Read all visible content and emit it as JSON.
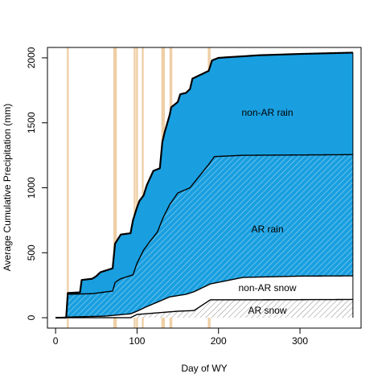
{
  "chart_data": {
    "type": "area",
    "title": "",
    "xlabel": "Day of WY",
    "ylabel": "Average Cumulative Precipitation (mm)",
    "xlim": [
      -10,
      375
    ],
    "ylim": [
      -80,
      2080
    ],
    "x_ticks": [
      0,
      100,
      200,
      300
    ],
    "x_tick_labels": [
      "0",
      "100",
      "200",
      "300"
    ],
    "y_ticks": [
      0,
      500,
      1000,
      1500,
      2000
    ],
    "y_tick_labels": [
      "0",
      "500",
      "1000",
      "1500",
      "2000"
    ],
    "grid": false,
    "legend": "none",
    "x_end": 365,
    "ar_event_days": [
      15,
      72,
      73,
      74,
      97,
      100,
      107,
      131,
      132,
      133,
      141,
      142,
      188,
      189
    ],
    "series": [
      {
        "name": "AR snow",
        "color": "#ffffff",
        "fill": "gray-hatch",
        "points": [
          [
            0,
            0
          ],
          [
            92,
            0
          ],
          [
            95,
            10
          ],
          [
            100,
            25
          ],
          [
            120,
            35
          ],
          [
            150,
            50
          ],
          [
            170,
            55
          ],
          [
            190,
            138
          ],
          [
            250,
            138
          ],
          [
            365,
            140
          ]
        ]
      },
      {
        "name": "non-AR snow",
        "color": "#ffffff",
        "fill": "white",
        "points": [
          [
            0,
            0
          ],
          [
            15,
            5
          ],
          [
            60,
            12
          ],
          [
            92,
            30
          ],
          [
            100,
            50
          ],
          [
            110,
            80
          ],
          [
            125,
            120
          ],
          [
            140,
            160
          ],
          [
            160,
            180
          ],
          [
            170,
            200
          ],
          [
            190,
            260
          ],
          [
            230,
            310
          ],
          [
            300,
            320
          ],
          [
            365,
            322
          ]
        ]
      },
      {
        "name": "AR rain",
        "color": "#199fe0",
        "fill": "blue-hatch",
        "points": [
          [
            0,
            0
          ],
          [
            13,
            0
          ],
          [
            15,
            180
          ],
          [
            45,
            185
          ],
          [
            70,
            205
          ],
          [
            73,
            270
          ],
          [
            76,
            285
          ],
          [
            80,
            300
          ],
          [
            95,
            330
          ],
          [
            100,
            420
          ],
          [
            108,
            520
          ],
          [
            115,
            580
          ],
          [
            125,
            660
          ],
          [
            132,
            770
          ],
          [
            140,
            870
          ],
          [
            150,
            960
          ],
          [
            165,
            1000
          ],
          [
            188,
            1180
          ],
          [
            195,
            1240
          ],
          [
            230,
            1250
          ],
          [
            365,
            1255
          ]
        ]
      },
      {
        "name": "non-AR rain",
        "color": "#199fe0",
        "fill": "blue",
        "points": [
          [
            0,
            0
          ],
          [
            13,
            0
          ],
          [
            15,
            190
          ],
          [
            30,
            195
          ],
          [
            32,
            290
          ],
          [
            45,
            300
          ],
          [
            50,
            320
          ],
          [
            55,
            350
          ],
          [
            70,
            380
          ],
          [
            73,
            570
          ],
          [
            76,
            600
          ],
          [
            80,
            640
          ],
          [
            92,
            650
          ],
          [
            95,
            750
          ],
          [
            100,
            850
          ],
          [
            103,
            900
          ],
          [
            108,
            940
          ],
          [
            112,
            1020
          ],
          [
            120,
            1130
          ],
          [
            128,
            1150
          ],
          [
            131,
            1350
          ],
          [
            134,
            1430
          ],
          [
            140,
            1560
          ],
          [
            142,
            1620
          ],
          [
            150,
            1660
          ],
          [
            153,
            1720
          ],
          [
            160,
            1730
          ],
          [
            165,
            1760
          ],
          [
            168,
            1840
          ],
          [
            188,
            1900
          ],
          [
            192,
            1980
          ],
          [
            200,
            2000
          ],
          [
            250,
            2020
          ],
          [
            300,
            2030
          ],
          [
            365,
            2040
          ]
        ]
      }
    ],
    "annotations": [
      {
        "text": "non-AR rain",
        "x": 260,
        "y": 1580
      },
      {
        "text": "AR rain",
        "x": 260,
        "y": 680
      },
      {
        "text": "non-AR snow",
        "x": 260,
        "y": 230
      },
      {
        "text": "AR snow",
        "x": 260,
        "y": 55
      }
    ],
    "colors": {
      "rain": "#199fe0",
      "ar_bar": "#efcfa6",
      "axis": "#000000",
      "hatch_gray": "#8a8a8a",
      "hatch_blue": "#0f7fc0"
    }
  }
}
